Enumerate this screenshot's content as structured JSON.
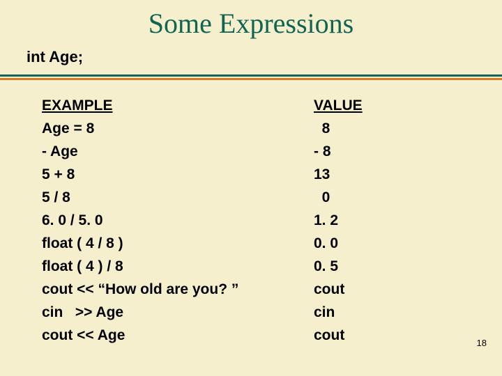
{
  "title": "Some Expressions",
  "declaration": "int Age;",
  "headers": {
    "example": "EXAMPLE",
    "value": "VALUE"
  },
  "rows": [
    {
      "example": "Age = 8",
      "value": "  8"
    },
    {
      "example": "- Age",
      "value": "- 8"
    },
    {
      "example": "5 + 8",
      "value": "13"
    },
    {
      "example": "5 / 8",
      "value": "  0"
    },
    {
      "example": "6. 0 / 5. 0",
      "value": "1. 2"
    },
    {
      "example": "float ( 4 / 8 )",
      "value": "0. 0"
    },
    {
      "example": "float ( 4 ) / 8",
      "value": "0. 5"
    },
    {
      "example": "cout << “How old are you? ”",
      "value": "cout"
    },
    {
      "example": "cin   >> Age",
      "value": "cin"
    },
    {
      "example": "cout << Age",
      "value": "cout"
    }
  ],
  "page_number": "18",
  "colors": {
    "background": "#f5efce",
    "title": "#126452",
    "divider_top": "#126452",
    "divider_bottom": "#d87a2a"
  }
}
